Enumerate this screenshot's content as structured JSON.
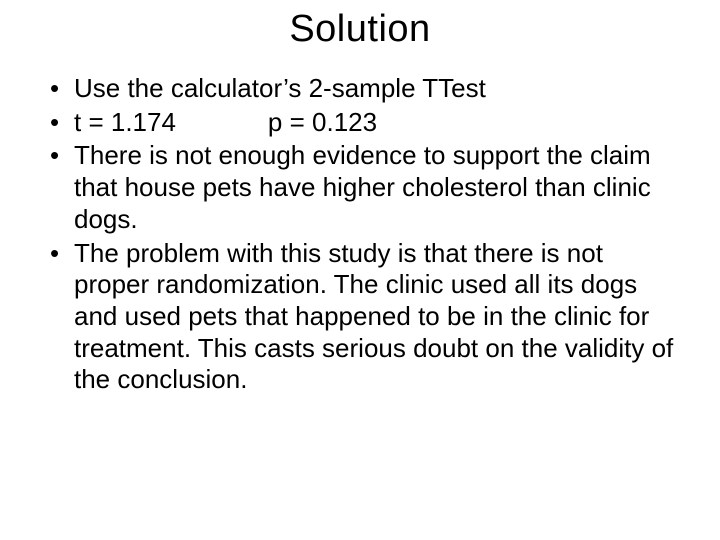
{
  "title": "Solution",
  "bullets": {
    "b1": "Use the calculator’s 2-sample TTest",
    "b2_t": "t = 1.174",
    "b2_p": "p = 0.123",
    "b3": "There is not enough evidence to support the claim that house pets have higher cholesterol than clinic dogs.",
    "b4": "The problem with this study is that there is not proper randomization.  The clinic used all its dogs and used pets that happened to be in the clinic for treatment.  This casts serious doubt on the validity of the conclusion."
  },
  "style": {
    "background_color": "#ffffff",
    "text_color": "#000000",
    "title_fontsize": 38,
    "body_fontsize": 26,
    "font_family": "Arial"
  }
}
